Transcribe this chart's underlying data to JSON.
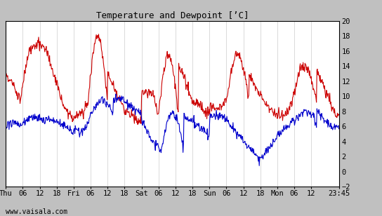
{
  "title": "Temperature and Dewpoint [’C]",
  "ylim": [
    -2,
    20
  ],
  "yticks": [
    -2,
    0,
    2,
    4,
    6,
    8,
    10,
    12,
    14,
    16,
    18,
    20
  ],
  "bg_color": "#ffffff",
  "outer_bg": "#c0c0c0",
  "grid_color": "#cccccc",
  "footer": "www.vaisala.com",
  "temp_color": "#cc0000",
  "dewp_color": "#0000cc",
  "line_width": 0.8,
  "x_tick_labels": [
    "Thu",
    "06",
    "12",
    "18",
    "Fri",
    "06",
    "12",
    "18",
    "Sat",
    "06",
    "12",
    "18",
    "Sun",
    "06",
    "12",
    "18",
    "Mon",
    "06",
    "12",
    "23:45"
  ],
  "x_tick_positions": [
    0,
    6,
    12,
    18,
    24,
    30,
    36,
    42,
    48,
    54,
    60,
    66,
    72,
    78,
    84,
    90,
    96,
    102,
    108,
    117.75
  ],
  "xlim": [
    0,
    117.75
  ]
}
